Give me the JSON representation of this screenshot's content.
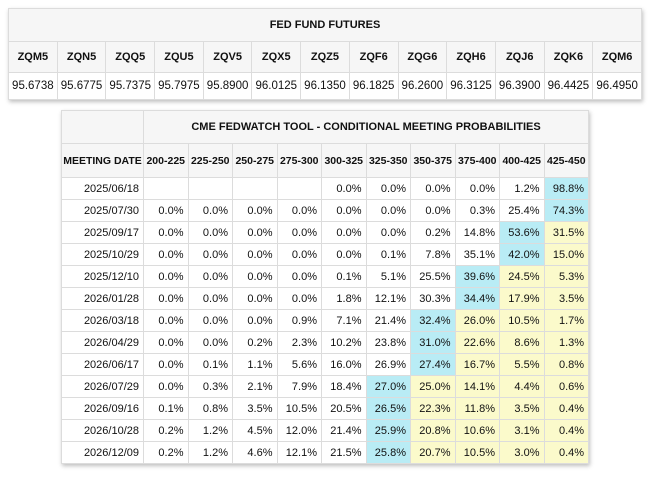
{
  "futures": {
    "title": "FED FUND FUTURES",
    "contracts": [
      "ZQM5",
      "ZQN5",
      "ZQQ5",
      "ZQU5",
      "ZQV5",
      "ZQX5",
      "ZQZ5",
      "ZQF6",
      "ZQG6",
      "ZQH6",
      "ZQJ6",
      "ZQK6",
      "ZQM6"
    ],
    "prices": [
      "95.6738",
      "95.6775",
      "95.7375",
      "95.7975",
      "95.8900",
      "96.0125",
      "96.1350",
      "96.1825",
      "96.2600",
      "96.3125",
      "96.3900",
      "96.4425",
      "96.4950"
    ]
  },
  "fedwatch": {
    "title": "CME FEDWATCH TOOL - CONDITIONAL MEETING PROBABILITIES",
    "meeting_header": "MEETING DATE",
    "ranges": [
      "200-225",
      "225-250",
      "250-275",
      "275-300",
      "300-325",
      "325-350",
      "350-375",
      "375-400",
      "400-425",
      "425-450"
    ],
    "highlight_colors": {
      "blue": "#b9ecf5",
      "yellow": "#fbfacb"
    },
    "rows": [
      {
        "date": "2025/06/18",
        "values": [
          "",
          "",
          "",
          "",
          "0.0%",
          "0.0%",
          "0.0%",
          "0.0%",
          "1.2%",
          "98.8%"
        ],
        "hl": [
          "",
          "",
          "",
          "",
          "",
          "",
          "",
          "",
          "",
          "b"
        ]
      },
      {
        "date": "2025/07/30",
        "values": [
          "0.0%",
          "0.0%",
          "0.0%",
          "0.0%",
          "0.0%",
          "0.0%",
          "0.0%",
          "0.3%",
          "25.4%",
          "74.3%"
        ],
        "hl": [
          "",
          "",
          "",
          "",
          "",
          "",
          "",
          "",
          "",
          "b"
        ]
      },
      {
        "date": "2025/09/17",
        "values": [
          "0.0%",
          "0.0%",
          "0.0%",
          "0.0%",
          "0.0%",
          "0.0%",
          "0.2%",
          "14.8%",
          "53.6%",
          "31.5%"
        ],
        "hl": [
          "",
          "",
          "",
          "",
          "",
          "",
          "",
          "",
          "b",
          "y"
        ]
      },
      {
        "date": "2025/10/29",
        "values": [
          "0.0%",
          "0.0%",
          "0.0%",
          "0.0%",
          "0.0%",
          "0.1%",
          "7.8%",
          "35.1%",
          "42.0%",
          "15.0%"
        ],
        "hl": [
          "",
          "",
          "",
          "",
          "",
          "",
          "",
          "",
          "b",
          "y"
        ]
      },
      {
        "date": "2025/12/10",
        "values": [
          "0.0%",
          "0.0%",
          "0.0%",
          "0.0%",
          "0.1%",
          "5.1%",
          "25.5%",
          "39.6%",
          "24.5%",
          "5.3%"
        ],
        "hl": [
          "",
          "",
          "",
          "",
          "",
          "",
          "",
          "b",
          "y",
          "y"
        ]
      },
      {
        "date": "2026/01/28",
        "values": [
          "0.0%",
          "0.0%",
          "0.0%",
          "0.0%",
          "1.8%",
          "12.1%",
          "30.3%",
          "34.4%",
          "17.9%",
          "3.5%"
        ],
        "hl": [
          "",
          "",
          "",
          "",
          "",
          "",
          "",
          "b",
          "y",
          "y"
        ]
      },
      {
        "date": "2026/03/18",
        "values": [
          "0.0%",
          "0.0%",
          "0.0%",
          "0.9%",
          "7.1%",
          "21.4%",
          "32.4%",
          "26.0%",
          "10.5%",
          "1.7%"
        ],
        "hl": [
          "",
          "",
          "",
          "",
          "",
          "",
          "b",
          "y",
          "y",
          "y"
        ]
      },
      {
        "date": "2026/04/29",
        "values": [
          "0.0%",
          "0.0%",
          "0.2%",
          "2.3%",
          "10.2%",
          "23.8%",
          "31.0%",
          "22.6%",
          "8.6%",
          "1.3%"
        ],
        "hl": [
          "",
          "",
          "",
          "",
          "",
          "",
          "b",
          "y",
          "y",
          "y"
        ]
      },
      {
        "date": "2026/06/17",
        "values": [
          "0.0%",
          "0.1%",
          "1.1%",
          "5.6%",
          "16.0%",
          "26.9%",
          "27.4%",
          "16.7%",
          "5.5%",
          "0.8%"
        ],
        "hl": [
          "",
          "",
          "",
          "",
          "",
          "",
          "b",
          "y",
          "y",
          "y"
        ]
      },
      {
        "date": "2026/07/29",
        "values": [
          "0.0%",
          "0.3%",
          "2.1%",
          "7.9%",
          "18.4%",
          "27.0%",
          "25.0%",
          "14.1%",
          "4.4%",
          "0.6%"
        ],
        "hl": [
          "",
          "",
          "",
          "",
          "",
          "b",
          "y",
          "y",
          "y",
          "y"
        ]
      },
      {
        "date": "2026/09/16",
        "values": [
          "0.1%",
          "0.8%",
          "3.5%",
          "10.5%",
          "20.5%",
          "26.5%",
          "22.3%",
          "11.8%",
          "3.5%",
          "0.4%"
        ],
        "hl": [
          "",
          "",
          "",
          "",
          "",
          "b",
          "y",
          "y",
          "y",
          "y"
        ]
      },
      {
        "date": "2026/10/28",
        "values": [
          "0.2%",
          "1.2%",
          "4.5%",
          "12.0%",
          "21.4%",
          "25.9%",
          "20.8%",
          "10.6%",
          "3.1%",
          "0.4%"
        ],
        "hl": [
          "",
          "",
          "",
          "",
          "",
          "b",
          "y",
          "y",
          "y",
          "y"
        ]
      },
      {
        "date": "2026/12/09",
        "values": [
          "0.2%",
          "1.2%",
          "4.6%",
          "12.1%",
          "21.5%",
          "25.8%",
          "20.7%",
          "10.5%",
          "3.0%",
          "0.4%"
        ],
        "hl": [
          "",
          "",
          "",
          "",
          "",
          "b",
          "y",
          "y",
          "y",
          "y"
        ]
      }
    ]
  }
}
